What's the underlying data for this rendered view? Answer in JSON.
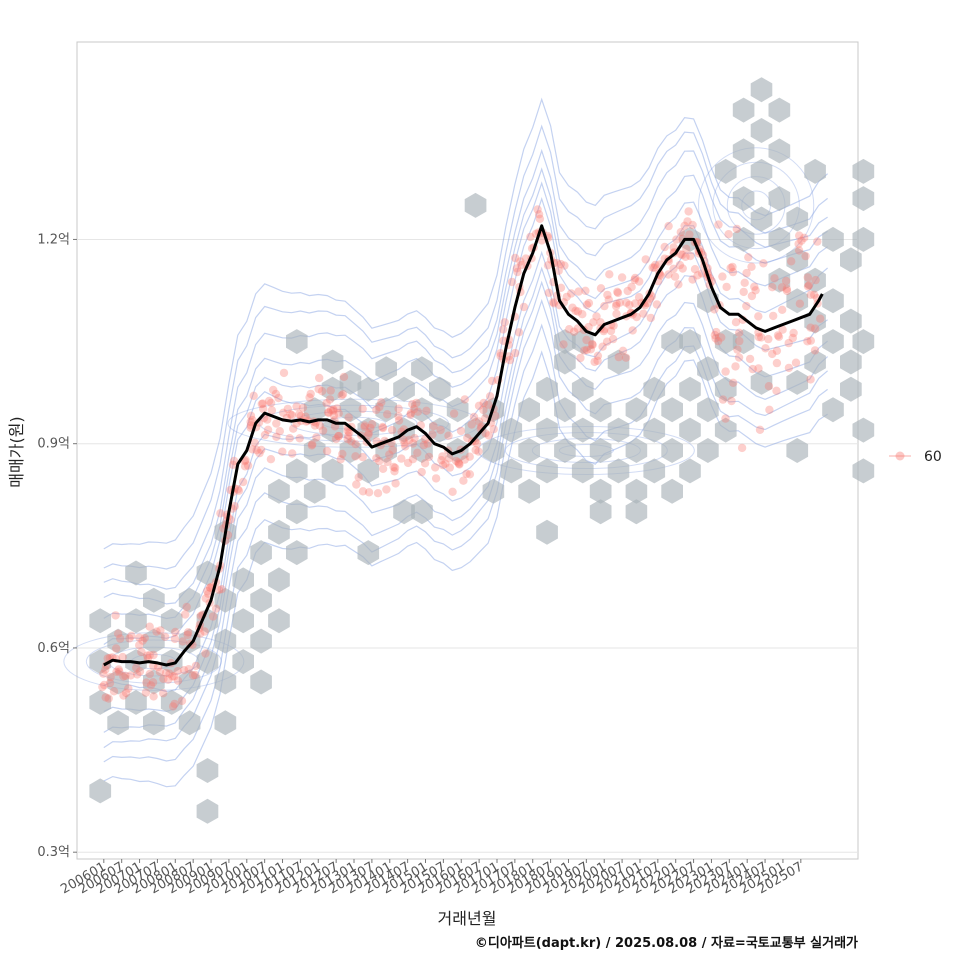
{
  "chart_data": {
    "type": "scatter",
    "title": "",
    "xlabel": "거래년월",
    "ylabel": "매매가(원)",
    "caption": "©디아파트(dapt.kr) / 2025.08.08 / 자료=국토교통부 실거래가",
    "x_ticks": [
      "200601",
      "200607",
      "200701",
      "200707",
      "200801",
      "200807",
      "200901",
      "200907",
      "201001",
      "201007",
      "201101",
      "201107",
      "201201",
      "201207",
      "201301",
      "201307",
      "201401",
      "201407",
      "201501",
      "201507",
      "201601",
      "201607",
      "201701",
      "201707",
      "201801",
      "201807",
      "201901",
      "201907",
      "202001",
      "202007",
      "202101",
      "202107",
      "202201",
      "202207",
      "202301",
      "202307",
      "202401",
      "202407",
      "202501",
      "202507"
    ],
    "y_ticks": [
      {
        "value": 0.3,
        "label": "0.3억"
      },
      {
        "value": 0.6,
        "label": "0.6억"
      },
      {
        "value": 0.9,
        "label": "0.9억"
      },
      {
        "value": 1.2,
        "label": "1.2억"
      }
    ],
    "xlim": [
      -1.5,
      42.2
    ],
    "ylim": [
      0.29,
      1.49
    ],
    "grid": true,
    "legend": {
      "position": "right",
      "entries": [
        {
          "label": "60",
          "color": "#f8766d"
        }
      ]
    },
    "colors": {
      "points": "#f8766d",
      "trend": "#000000",
      "contour": "#7d9be0",
      "hex": "#a9b2b8"
    },
    "trend_line": {
      "x": [
        0,
        0.5,
        1,
        1.5,
        2,
        2.5,
        3,
        3.5,
        4,
        4.5,
        5,
        5.5,
        6,
        6.5,
        7,
        7.5,
        8,
        8.5,
        9,
        9.5,
        10,
        10.5,
        11,
        11.5,
        12,
        12.5,
        13,
        13.5,
        14,
        14.5,
        15,
        15.5,
        16,
        16.5,
        17,
        17.5,
        18,
        18.5,
        19,
        19.5,
        20,
        20.5,
        21,
        21.5,
        22,
        22.5,
        23,
        23.5,
        24,
        24.5,
        25,
        25.5,
        26,
        26.5,
        27,
        27.5,
        28,
        28.5,
        29,
        29.5,
        30,
        30.5,
        31,
        31.5,
        32,
        32.5,
        33,
        33.5,
        34,
        34.5,
        35,
        35.5,
        36,
        36.5,
        37,
        37.5,
        38,
        38.5,
        39,
        39.5,
        40,
        40.2
      ],
      "y": [
        0.575,
        0.582,
        0.58,
        0.58,
        0.578,
        0.58,
        0.578,
        0.575,
        0.578,
        0.595,
        0.61,
        0.64,
        0.67,
        0.72,
        0.8,
        0.87,
        0.89,
        0.93,
        0.945,
        0.94,
        0.935,
        0.933,
        0.935,
        0.932,
        0.935,
        0.935,
        0.93,
        0.93,
        0.92,
        0.91,
        0.895,
        0.9,
        0.905,
        0.91,
        0.92,
        0.925,
        0.915,
        0.9,
        0.895,
        0.885,
        0.89,
        0.9,
        0.915,
        0.93,
        0.97,
        1.04,
        1.1,
        1.15,
        1.18,
        1.22,
        1.18,
        1.11,
        1.09,
        1.08,
        1.065,
        1.06,
        1.075,
        1.08,
        1.085,
        1.09,
        1.1,
        1.12,
        1.15,
        1.17,
        1.18,
        1.2,
        1.2,
        1.17,
        1.13,
        1.1,
        1.09,
        1.09,
        1.08,
        1.07,
        1.065,
        1.07,
        1.075,
        1.08,
        1.085,
        1.09,
        1.11,
        1.12
      ]
    },
    "hex_cells": [
      {
        "x": -0.2,
        "y": 0.64
      },
      {
        "x": -0.2,
        "y": 0.58
      },
      {
        "x": -0.2,
        "y": 0.52
      },
      {
        "x": -0.2,
        "y": 0.39
      },
      {
        "x": 0.8,
        "y": 0.61
      },
      {
        "x": 0.8,
        "y": 0.55
      },
      {
        "x": 0.8,
        "y": 0.49
      },
      {
        "x": 1.8,
        "y": 0.64
      },
      {
        "x": 1.8,
        "y": 0.58
      },
      {
        "x": 1.8,
        "y": 0.52
      },
      {
        "x": 1.8,
        "y": 0.71
      },
      {
        "x": 2.8,
        "y": 0.61
      },
      {
        "x": 2.8,
        "y": 0.55
      },
      {
        "x": 2.8,
        "y": 0.49
      },
      {
        "x": 2.8,
        "y": 0.67
      },
      {
        "x": 3.8,
        "y": 0.64
      },
      {
        "x": 3.8,
        "y": 0.58
      },
      {
        "x": 3.8,
        "y": 0.52
      },
      {
        "x": 4.8,
        "y": 0.61
      },
      {
        "x": 4.8,
        "y": 0.55
      },
      {
        "x": 4.8,
        "y": 0.49
      },
      {
        "x": 4.8,
        "y": 0.67
      },
      {
        "x": 5.8,
        "y": 0.64
      },
      {
        "x": 5.8,
        "y": 0.58
      },
      {
        "x": 5.8,
        "y": 0.71
      },
      {
        "x": 5.8,
        "y": 0.42
      },
      {
        "x": 5.8,
        "y": 0.36
      },
      {
        "x": 6.8,
        "y": 0.61
      },
      {
        "x": 6.8,
        "y": 0.67
      },
      {
        "x": 6.8,
        "y": 0.55
      },
      {
        "x": 6.8,
        "y": 0.77
      },
      {
        "x": 6.8,
        "y": 0.49
      },
      {
        "x": 7.8,
        "y": 0.64
      },
      {
        "x": 7.8,
        "y": 0.7
      },
      {
        "x": 7.8,
        "y": 0.58
      },
      {
        "x": 8.8,
        "y": 0.67
      },
      {
        "x": 8.8,
        "y": 0.74
      },
      {
        "x": 8.8,
        "y": 0.61
      },
      {
        "x": 8.8,
        "y": 0.55
      },
      {
        "x": 9.8,
        "y": 0.77
      },
      {
        "x": 9.8,
        "y": 0.83
      },
      {
        "x": 9.8,
        "y": 0.7
      },
      {
        "x": 9.8,
        "y": 0.64
      },
      {
        "x": 10.8,
        "y": 0.8
      },
      {
        "x": 10.8,
        "y": 0.86
      },
      {
        "x": 10.8,
        "y": 0.74
      },
      {
        "x": 10.8,
        "y": 1.05
      },
      {
        "x": 11.8,
        "y": 0.89
      },
      {
        "x": 11.8,
        "y": 0.95
      },
      {
        "x": 11.8,
        "y": 0.83
      },
      {
        "x": 12.8,
        "y": 0.92
      },
      {
        "x": 12.8,
        "y": 0.98
      },
      {
        "x": 12.8,
        "y": 1.02
      },
      {
        "x": 12.8,
        "y": 0.86
      },
      {
        "x": 13.8,
        "y": 0.89
      },
      {
        "x": 13.8,
        "y": 0.95
      },
      {
        "x": 13.8,
        "y": 0.99
      },
      {
        "x": 14.8,
        "y": 0.92
      },
      {
        "x": 14.8,
        "y": 0.98
      },
      {
        "x": 14.8,
        "y": 0.86
      },
      {
        "x": 14.8,
        "y": 0.74
      },
      {
        "x": 15.8,
        "y": 0.89
      },
      {
        "x": 15.8,
        "y": 0.95
      },
      {
        "x": 15.8,
        "y": 1.01
      },
      {
        "x": 16.8,
        "y": 0.92
      },
      {
        "x": 16.8,
        "y": 0.98
      },
      {
        "x": 16.8,
        "y": 0.8
      },
      {
        "x": 17.8,
        "y": 0.89
      },
      {
        "x": 17.8,
        "y": 0.95
      },
      {
        "x": 17.8,
        "y": 1.01
      },
      {
        "x": 17.8,
        "y": 0.8
      },
      {
        "x": 18.8,
        "y": 0.92
      },
      {
        "x": 18.8,
        "y": 0.98
      },
      {
        "x": 19.8,
        "y": 0.89
      },
      {
        "x": 19.8,
        "y": 0.95
      },
      {
        "x": 20.8,
        "y": 0.92
      },
      {
        "x": 20.8,
        "y": 1.25
      },
      {
        "x": 21.8,
        "y": 0.89
      },
      {
        "x": 21.8,
        "y": 0.83
      },
      {
        "x": 21.8,
        "y": 0.95
      },
      {
        "x": 22.8,
        "y": 0.86
      },
      {
        "x": 22.8,
        "y": 0.92
      },
      {
        "x": 23.8,
        "y": 0.89
      },
      {
        "x": 23.8,
        "y": 0.83
      },
      {
        "x": 23.8,
        "y": 0.95
      },
      {
        "x": 24.8,
        "y": 0.92
      },
      {
        "x": 24.8,
        "y": 0.86
      },
      {
        "x": 24.8,
        "y": 0.98
      },
      {
        "x": 24.8,
        "y": 0.77
      },
      {
        "x": 25.8,
        "y": 0.89
      },
      {
        "x": 25.8,
        "y": 0.95
      },
      {
        "x": 25.8,
        "y": 1.02
      },
      {
        "x": 25.8,
        "y": 1.05
      },
      {
        "x": 26.8,
        "y": 0.92
      },
      {
        "x": 26.8,
        "y": 0.86
      },
      {
        "x": 26.8,
        "y": 0.98
      },
      {
        "x": 26.8,
        "y": 1.05
      },
      {
        "x": 27.8,
        "y": 0.89
      },
      {
        "x": 27.8,
        "y": 0.83
      },
      {
        "x": 27.8,
        "y": 0.95
      },
      {
        "x": 27.8,
        "y": 0.8
      },
      {
        "x": 28.8,
        "y": 0.92
      },
      {
        "x": 28.8,
        "y": 0.86
      },
      {
        "x": 28.8,
        "y": 1.02
      },
      {
        "x": 29.8,
        "y": 0.89
      },
      {
        "x": 29.8,
        "y": 0.83
      },
      {
        "x": 29.8,
        "y": 0.95
      },
      {
        "x": 29.8,
        "y": 0.8
      },
      {
        "x": 30.8,
        "y": 0.92
      },
      {
        "x": 30.8,
        "y": 0.86
      },
      {
        "x": 30.8,
        "y": 0.98
      },
      {
        "x": 31.8,
        "y": 0.89
      },
      {
        "x": 31.8,
        "y": 0.83
      },
      {
        "x": 31.8,
        "y": 0.95
      },
      {
        "x": 31.8,
        "y": 1.05
      },
      {
        "x": 32.8,
        "y": 0.92
      },
      {
        "x": 32.8,
        "y": 0.86
      },
      {
        "x": 32.8,
        "y": 0.98
      },
      {
        "x": 32.8,
        "y": 1.05
      },
      {
        "x": 32.8,
        "y": 1.2
      },
      {
        "x": 33.8,
        "y": 0.95
      },
      {
        "x": 33.8,
        "y": 0.89
      },
      {
        "x": 33.8,
        "y": 1.01
      },
      {
        "x": 33.8,
        "y": 1.11
      },
      {
        "x": 34.8,
        "y": 0.98
      },
      {
        "x": 34.8,
        "y": 0.92
      },
      {
        "x": 34.8,
        "y": 1.05
      },
      {
        "x": 34.8,
        "y": 1.3
      },
      {
        "x": 35.8,
        "y": 1.2
      },
      {
        "x": 35.8,
        "y": 1.26
      },
      {
        "x": 35.8,
        "y": 1.33
      },
      {
        "x": 35.8,
        "y": 1.39
      },
      {
        "x": 35.8,
        "y": 1.05
      },
      {
        "x": 36.8,
        "y": 1.23
      },
      {
        "x": 36.8,
        "y": 1.3
      },
      {
        "x": 36.8,
        "y": 1.36
      },
      {
        "x": 36.8,
        "y": 1.42
      },
      {
        "x": 36.8,
        "y": 0.99
      },
      {
        "x": 37.8,
        "y": 1.2
      },
      {
        "x": 37.8,
        "y": 1.14
      },
      {
        "x": 37.8,
        "y": 1.26
      },
      {
        "x": 37.8,
        "y": 1.33
      },
      {
        "x": 37.8,
        "y": 1.39
      },
      {
        "x": 38.8,
        "y": 1.17
      },
      {
        "x": 38.8,
        "y": 1.11
      },
      {
        "x": 38.8,
        "y": 1.23
      },
      {
        "x": 38.8,
        "y": 0.99
      },
      {
        "x": 38.8,
        "y": 0.89
      },
      {
        "x": 39.8,
        "y": 1.14
      },
      {
        "x": 39.8,
        "y": 1.08
      },
      {
        "x": 39.8,
        "y": 1.3
      },
      {
        "x": 39.8,
        "y": 1.02
      },
      {
        "x": 40.8,
        "y": 1.11
      },
      {
        "x": 40.8,
        "y": 1.05
      },
      {
        "x": 40.8,
        "y": 0.95
      },
      {
        "x": 40.8,
        "y": 1.2
      },
      {
        "x": 41.8,
        "y": 1.08
      },
      {
        "x": 41.8,
        "y": 1.02
      },
      {
        "x": 41.8,
        "y": 0.98
      },
      {
        "x": 41.8,
        "y": 1.17
      },
      {
        "x": 42.5,
        "y": 1.05
      },
      {
        "x": 42.5,
        "y": 1.26
      },
      {
        "x": 42.5,
        "y": 1.3
      },
      {
        "x": 42.5,
        "y": 0.86
      },
      {
        "x": 42.5,
        "y": 0.92
      },
      {
        "x": 42.5,
        "y": 1.2
      }
    ]
  }
}
